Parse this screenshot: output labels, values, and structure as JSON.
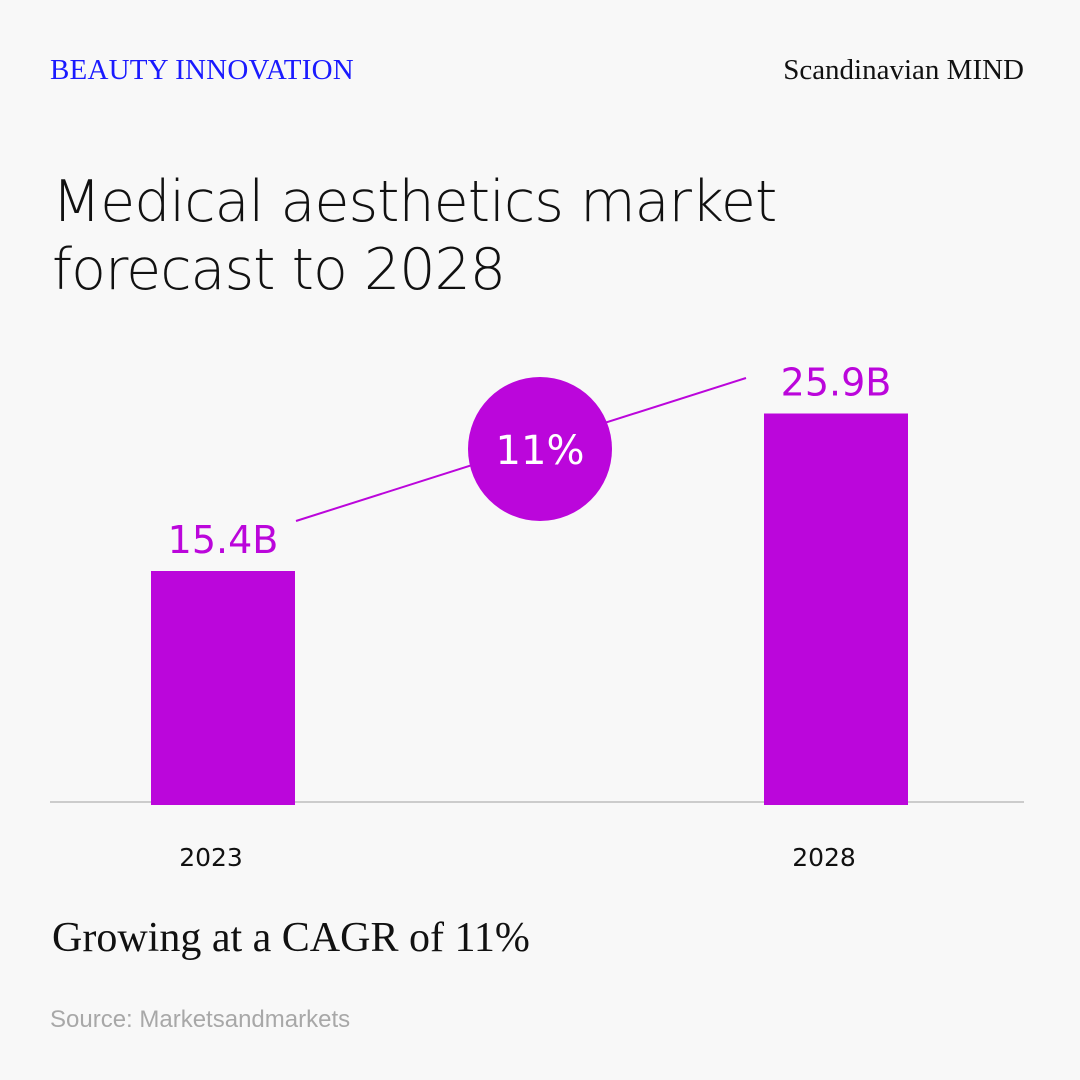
{
  "header": {
    "brand": "BEAUTY INNOVATION",
    "publisher": "Scandinavian MIND"
  },
  "title": "Medical aesthetics market forecast to 2028",
  "subtitle": "Growing at a CAGR of 11%",
  "source": "Source: Marketsandmarkets",
  "colors": {
    "bar": "#bb06db",
    "brand": "#1a1aff",
    "axis": "#cccccc"
  },
  "chart_data": {
    "type": "bar",
    "categories": [
      "2023",
      "2028"
    ],
    "values": [
      15.4,
      25.9
    ],
    "data_labels": [
      "15.4B",
      "25.9B"
    ],
    "unit": "B",
    "annotation": "11%",
    "title": "Medical aesthetics market forecast to 2028",
    "xlabel": "",
    "ylabel": "",
    "ylim": [
      0,
      30
    ],
    "grid": false
  }
}
